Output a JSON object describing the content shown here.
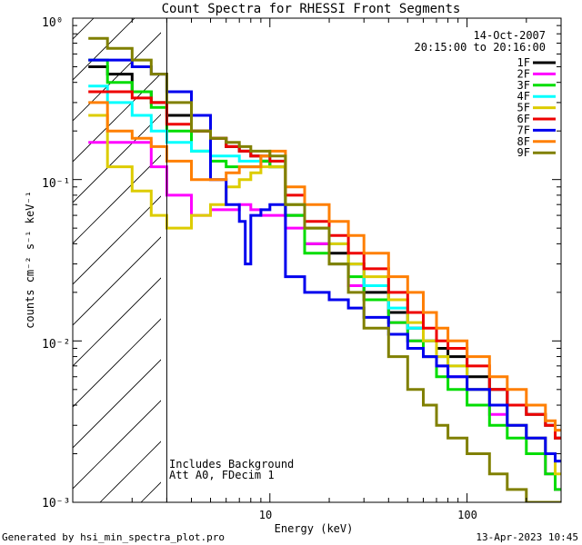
{
  "chart_data": {
    "type": "line",
    "title": "Count Spectra for RHESSI Front Segments",
    "xlabel": "Energy (keV)",
    "ylabel": "counts cm⁻² s⁻¹ keV⁻¹",
    "xscale": "log",
    "yscale": "log",
    "xlim": [
      1.0,
      300
    ],
    "ylim": [
      0.001,
      1.0
    ],
    "x_tick_labels": [
      "10",
      "100"
    ],
    "y_tick_labels": [
      "10⁻³",
      "10⁻²",
      "10⁻¹",
      "10⁰"
    ],
    "date": "14-Oct-2007",
    "time_range": "20:15:00 to 20:16:00",
    "hatched_region_max_keV": 3,
    "notes": [
      "Includes Background",
      "Att A0, FDecim 1"
    ],
    "footer_left": "Generated by hsi_min_spectra_plot.pro",
    "footer_right": "13-Apr-2023 10:45",
    "series": [
      {
        "name": "1F",
        "color": "#000000",
        "x": [
          1.2,
          1.5,
          2,
          2.5,
          3,
          4,
          5,
          6,
          7,
          8,
          9,
          10,
          12,
          15,
          20,
          25,
          30,
          40,
          50,
          60,
          70,
          80,
          100,
          130,
          160,
          200,
          250,
          280
        ],
        "values": [
          0.5,
          0.45,
          0.35,
          0.3,
          0.25,
          0.2,
          0.18,
          0.16,
          0.15,
          0.14,
          0.13,
          0.12,
          0.06,
          0.04,
          0.035,
          0.03,
          0.02,
          0.015,
          0.012,
          0.01,
          0.009,
          0.008,
          0.006,
          0.005,
          0.004,
          0.0035,
          0.003,
          0.0025
        ]
      },
      {
        "name": "2F",
        "color": "#ff00ff",
        "x": [
          1.2,
          1.5,
          2,
          2.5,
          3,
          4,
          5,
          6,
          7,
          8,
          9,
          10,
          12,
          15,
          20,
          25,
          30,
          40,
          50,
          60,
          70,
          80,
          100,
          130,
          160,
          200,
          250,
          280
        ],
        "values": [
          0.17,
          0.17,
          0.17,
          0.12,
          0.08,
          0.06,
          0.065,
          0.065,
          0.07,
          0.065,
          0.06,
          0.06,
          0.05,
          0.04,
          0.03,
          0.022,
          0.018,
          0.013,
          0.01,
          0.008,
          0.007,
          0.006,
          0.005,
          0.0035,
          0.003,
          0.0025,
          0.0015,
          0.0012
        ]
      },
      {
        "name": "3F",
        "color": "#00dd00",
        "x": [
          1.2,
          1.5,
          2,
          2.5,
          3,
          4,
          5,
          6,
          7,
          8,
          9,
          10,
          12,
          15,
          20,
          25,
          30,
          40,
          50,
          60,
          70,
          80,
          100,
          130,
          160,
          200,
          250,
          280
        ],
        "values": [
          0.55,
          0.4,
          0.35,
          0.28,
          0.2,
          0.15,
          0.13,
          0.12,
          0.12,
          0.12,
          0.13,
          0.12,
          0.06,
          0.035,
          0.03,
          0.025,
          0.018,
          0.013,
          0.01,
          0.008,
          0.006,
          0.005,
          0.004,
          0.003,
          0.0025,
          0.002,
          0.0015,
          0.0012
        ]
      },
      {
        "name": "4F",
        "color": "#00ffff",
        "x": [
          1.2,
          1.5,
          2,
          2.5,
          3,
          4,
          5,
          6,
          7,
          8,
          9,
          10,
          12,
          15,
          20,
          25,
          30,
          40,
          50,
          60,
          70,
          80,
          100,
          130,
          160,
          200,
          250,
          280
        ],
        "values": [
          0.38,
          0.3,
          0.25,
          0.2,
          0.17,
          0.15,
          0.14,
          0.14,
          0.13,
          0.13,
          0.14,
          0.13,
          0.07,
          0.05,
          0.04,
          0.03,
          0.022,
          0.016,
          0.012,
          0.01,
          0.008,
          0.007,
          0.005,
          0.004,
          0.003,
          0.0025,
          0.002,
          0.0018
        ]
      },
      {
        "name": "5F",
        "color": "#ddcc00",
        "x": [
          1.2,
          1.5,
          2,
          2.5,
          3,
          4,
          5,
          6,
          7,
          8,
          9,
          10,
          12,
          15,
          20,
          25,
          30,
          40,
          50,
          60,
          70,
          80,
          100,
          130,
          160,
          200,
          250,
          280
        ],
        "values": [
          0.25,
          0.12,
          0.085,
          0.06,
          0.05,
          0.06,
          0.07,
          0.09,
          0.1,
          0.11,
          0.12,
          0.12,
          0.07,
          0.05,
          0.04,
          0.03,
          0.025,
          0.018,
          0.013,
          0.01,
          0.008,
          0.007,
          0.005,
          0.004,
          0.003,
          0.0025,
          0.002,
          0.0015
        ]
      },
      {
        "name": "6F",
        "color": "#ee0000",
        "x": [
          1.2,
          1.5,
          2,
          2.5,
          3,
          4,
          5,
          6,
          7,
          8,
          9,
          10,
          12,
          15,
          20,
          25,
          30,
          40,
          50,
          60,
          70,
          80,
          100,
          130,
          160,
          200,
          250,
          280
        ],
        "values": [
          0.35,
          0.35,
          0.32,
          0.3,
          0.22,
          0.2,
          0.18,
          0.16,
          0.15,
          0.14,
          0.14,
          0.13,
          0.08,
          0.055,
          0.045,
          0.035,
          0.028,
          0.02,
          0.015,
          0.012,
          0.01,
          0.009,
          0.007,
          0.005,
          0.004,
          0.0035,
          0.003,
          0.0025
        ]
      },
      {
        "name": "7F",
        "color": "#0000ee",
        "x": [
          1.2,
          1.5,
          2,
          2.5,
          3,
          4,
          5,
          6,
          7,
          7.5,
          8,
          9,
          10,
          12,
          15,
          20,
          25,
          30,
          40,
          50,
          60,
          70,
          80,
          100,
          130,
          160,
          200,
          250,
          280
        ],
        "values": [
          0.55,
          0.55,
          0.5,
          0.45,
          0.35,
          0.25,
          0.1,
          0.07,
          0.055,
          0.03,
          0.06,
          0.065,
          0.07,
          0.025,
          0.02,
          0.018,
          0.016,
          0.014,
          0.011,
          0.009,
          0.008,
          0.007,
          0.006,
          0.005,
          0.004,
          0.003,
          0.0025,
          0.002,
          0.0018
        ]
      },
      {
        "name": "8F",
        "color": "#ff7f00",
        "x": [
          1.2,
          1.5,
          2,
          2.5,
          3,
          4,
          5,
          6,
          7,
          8,
          9,
          10,
          12,
          15,
          20,
          25,
          30,
          40,
          50,
          60,
          70,
          80,
          100,
          130,
          160,
          200,
          250,
          280
        ],
        "values": [
          0.3,
          0.2,
          0.18,
          0.16,
          0.13,
          0.1,
          0.1,
          0.11,
          0.12,
          0.12,
          0.14,
          0.15,
          0.09,
          0.07,
          0.055,
          0.045,
          0.035,
          0.025,
          0.02,
          0.015,
          0.012,
          0.01,
          0.008,
          0.006,
          0.005,
          0.004,
          0.0032,
          0.0028
        ]
      },
      {
        "name": "9F",
        "color": "#808000",
        "x": [
          1.2,
          1.5,
          2,
          2.5,
          3,
          4,
          5,
          6,
          7,
          8,
          9,
          10,
          12,
          15,
          20,
          25,
          30,
          40,
          50,
          60,
          70,
          80,
          100,
          130,
          160,
          200,
          250,
          280
        ],
        "values": [
          0.75,
          0.65,
          0.55,
          0.45,
          0.3,
          0.2,
          0.18,
          0.17,
          0.16,
          0.15,
          0.15,
          0.14,
          0.07,
          0.05,
          0.03,
          0.02,
          0.012,
          0.008,
          0.005,
          0.004,
          0.003,
          0.0025,
          0.002,
          0.0015,
          0.0012,
          0.001,
          0.001,
          0.001
        ]
      }
    ]
  }
}
